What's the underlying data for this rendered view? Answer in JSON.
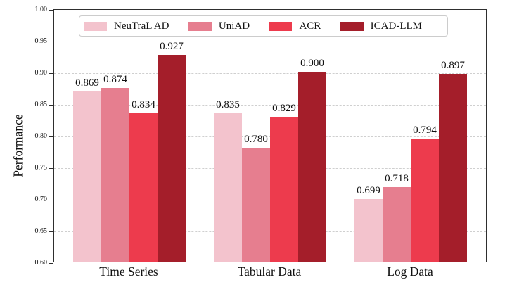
{
  "chart_data": {
    "type": "bar",
    "title": "",
    "xlabel": "",
    "ylabel": "Performance",
    "categories": [
      "Time Series",
      "Tabular Data",
      "Log Data"
    ],
    "series": [
      {
        "name": "NeuTraL AD",
        "color": "#F3C3CD",
        "values": [
          0.869,
          0.835,
          0.699
        ]
      },
      {
        "name": "UniAD",
        "color": "#E67E8F",
        "values": [
          0.874,
          0.78,
          0.718
        ]
      },
      {
        "name": "ACR",
        "color": "#ED3B4D",
        "values": [
          0.834,
          0.829,
          0.794
        ]
      },
      {
        "name": "ICAD-LLM",
        "color": "#A41E2A",
        "values": [
          0.927,
          0.9,
          0.897
        ]
      }
    ],
    "ylim": [
      0.6,
      1.0
    ],
    "yticks": [
      "1.00",
      "0.95",
      "0.90",
      "0.85",
      "0.80",
      "0.75",
      "0.70",
      "0.65",
      "0.60"
    ],
    "bar_value_labels": [
      [
        "0.869",
        "0.874",
        "0.834",
        "0.927"
      ],
      [
        "0.835",
        "0.780",
        "0.829",
        "0.900"
      ],
      [
        "0.699",
        "0.718",
        "0.794",
        "0.897"
      ]
    ],
    "grid": "horizontal-dashed",
    "grid_color": "#cfcfcf",
    "spine_color": "#2e2e2e",
    "legend_position": "upper center",
    "legend_border_color": "#cccccc"
  }
}
